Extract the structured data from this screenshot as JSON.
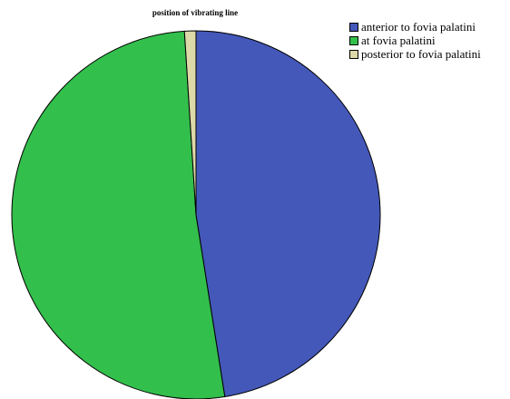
{
  "chart_data": {
    "type": "pie",
    "title": "position of vibrating line",
    "categories": [
      "anterior to fovia palatini",
      "at fovia palatini",
      "posterior to fovia palatini"
    ],
    "values": [
      47.5,
      51.5,
      1.0
    ],
    "colors": [
      "#4458b9",
      "#33bf4c",
      "#ddd9a8"
    ],
    "legend_position": "top-right",
    "start_angle_deg": 0,
    "direction": "clockwise"
  }
}
